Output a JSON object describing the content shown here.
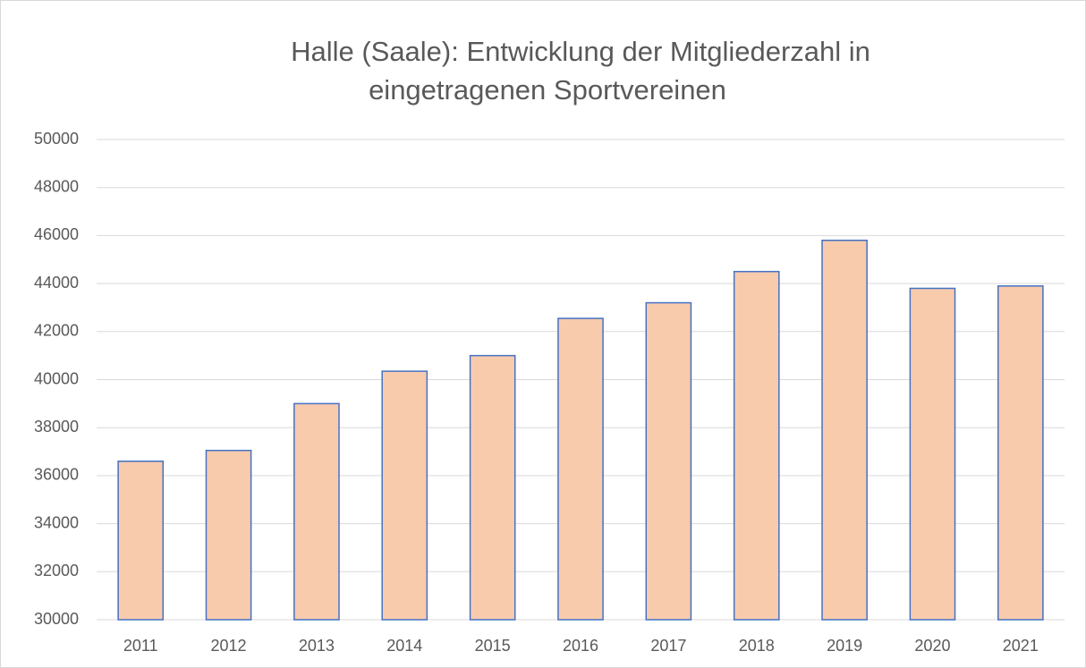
{
  "chart_data": {
    "type": "bar",
    "title": [
      "Halle (Saale): Entwicklung der Mitgliederzahl in",
      "eingetragenen Sportvereinen"
    ],
    "categories": [
      "2011",
      "2012",
      "2013",
      "2014",
      "2015",
      "2016",
      "2017",
      "2018",
      "2019",
      "2020",
      "2021"
    ],
    "values": [
      36600,
      37050,
      39000,
      40350,
      41000,
      42550,
      43200,
      44500,
      45800,
      43800,
      43900
    ],
    "color": "#f8cbad",
    "edge_color": "#4472c4",
    "ylim": [
      30000,
      50000
    ],
    "yticks": [
      30000,
      32000,
      34000,
      36000,
      38000,
      40000,
      42000,
      44000,
      46000,
      48000,
      50000
    ],
    "grid": true
  }
}
